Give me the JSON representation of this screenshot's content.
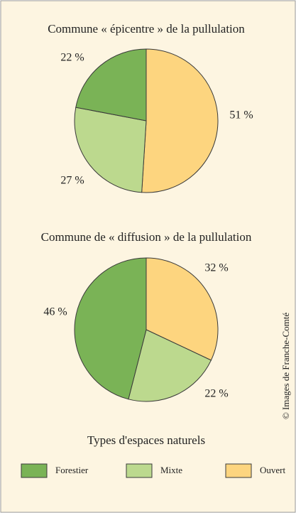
{
  "chart_data": [
    {
      "type": "pie",
      "title": "Commune « épicentre » de la pullulation",
      "categories": [
        "Ouvert",
        "Mixte",
        "Forestier"
      ],
      "values": [
        51,
        27,
        22
      ],
      "value_labels": [
        "51 %",
        "27 %",
        "22 %"
      ],
      "colors": [
        "#fdd57f",
        "#bcd98e",
        "#7ab356"
      ]
    },
    {
      "type": "pie",
      "title": "Commune de « diffusion » de la pullulation",
      "categories": [
        "Ouvert",
        "Mixte",
        "Forestier"
      ],
      "values": [
        32,
        22,
        46
      ],
      "value_labels": [
        "32 %",
        "22 %",
        "46 %"
      ],
      "colors": [
        "#fdd57f",
        "#bcd98e",
        "#7ab356"
      ]
    }
  ],
  "legend_title": "Types d'espaces naturels",
  "credit": "© Images de Franche-Comté"
}
